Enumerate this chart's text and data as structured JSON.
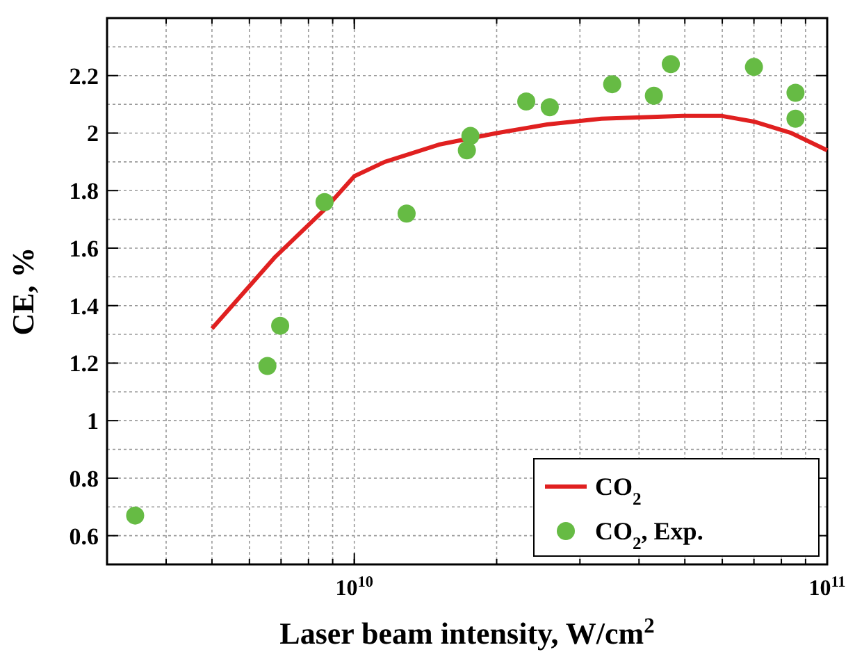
{
  "chart_data": {
    "type": "scatter",
    "xlabel": "Laser beam intensity, W/cm$^{2}$",
    "ylabel": "CE, %",
    "log": "x",
    "xlim": [
      3000000000.0,
      100000000000.0
    ],
    "xticks": [
      {
        "value": 10000000000.0,
        "label": "10$^{10}$"
      },
      {
        "value": 100000000000.0,
        "label": "10$^{11}$"
      }
    ],
    "ylim": [
      0.5,
      2.4
    ],
    "yticks": [
      0.6,
      0.8,
      1,
      1.2,
      1.4,
      1.6,
      1.8,
      2,
      2.2
    ],
    "grid": true,
    "legend": "bottom right",
    "series": [
      {
        "name": "CO$_{2}$",
        "type": "line",
        "color": "#e02020",
        "line_style": "solid",
        "x": [
          5000000000.0,
          6810000000.0,
          8600000000.0,
          10000000000.0,
          11600000000.0,
          15100000000.0,
          20000000000.0,
          25600000000.0,
          33300000000.0,
          49500000000.0,
          59700000000.0,
          70000000000.0,
          84000000000.0,
          100000000000.0
        ],
        "values": [
          1.32,
          1.57,
          1.73,
          1.85,
          1.9,
          1.96,
          2.0,
          2.03,
          2.05,
          2.06,
          2.06,
          2.04,
          2.0,
          1.94
        ]
      },
      {
        "name": "CO$_{2}$, Exp.",
        "color": "#66bb44",
        "marker": "circle",
        "x": [
          3440000000.0,
          6550000000.0,
          6970000000.0,
          8650000000.0,
          12900000000.0,
          17300000000.0,
          17600000000.0,
          23100000000.0,
          25900000000.0,
          35100000000.0,
          43000000000.0,
          46700000000.0,
          70000000000.0,
          85700000000.0,
          85700000000.0
        ],
        "values": [
          0.67,
          1.19,
          1.33,
          1.76,
          1.72,
          1.94,
          1.99,
          2.11,
          2.09,
          2.17,
          2.13,
          2.24,
          2.23,
          2.14,
          2.05
        ]
      }
    ]
  }
}
